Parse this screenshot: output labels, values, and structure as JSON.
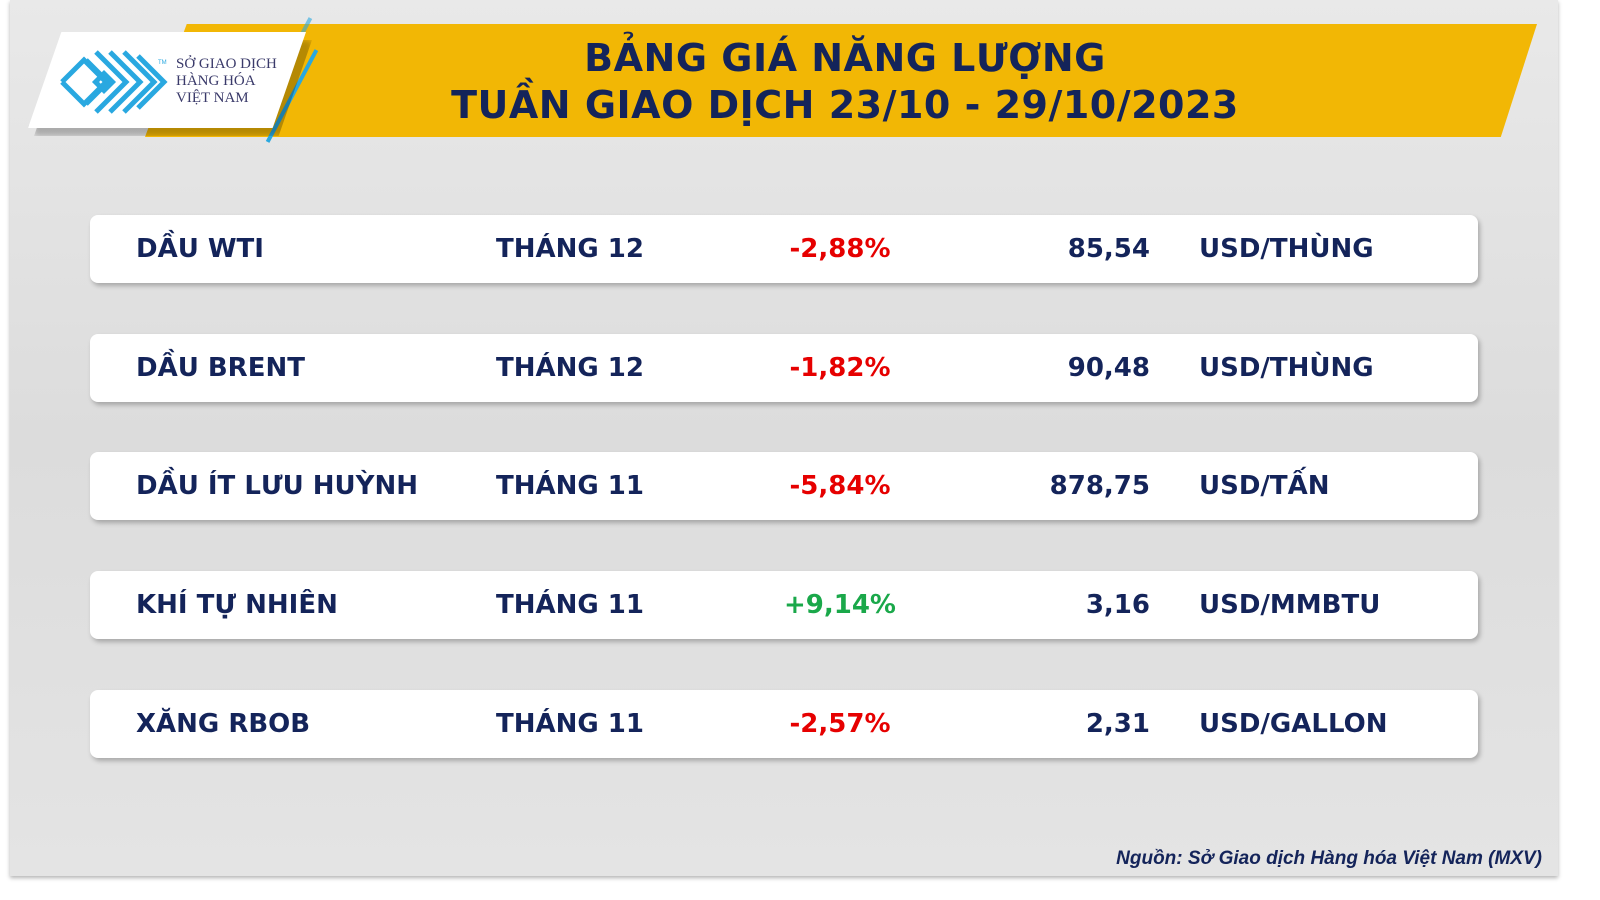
{
  "header": {
    "title_line1": "BẢNG GIÁ NĂNG LƯỢNG",
    "title_line2": "TUẦN GIAO DỊCH 23/10 - 29/10/2023"
  },
  "logo": {
    "line1": "SỞ GIAO DỊCH",
    "line2": "HÀNG HÓA",
    "line3": "VIỆT NAM",
    "tm": "TM"
  },
  "colors": {
    "banner": "#f2b705",
    "text": "#14245a",
    "negative": "#e60000",
    "positive": "#1aa84a",
    "logo_blue": "#29a8e0"
  },
  "rows": [
    {
      "name": "DẦU WTI",
      "month": "THÁNG 12",
      "change": "-2,88%",
      "direction": "down",
      "price": "85,54",
      "unit": "USD/THÙNG"
    },
    {
      "name": "DẦU BRENT",
      "month": "THÁNG 12",
      "change": "-1,82%",
      "direction": "down",
      "price": "90,48",
      "unit": "USD/THÙNG"
    },
    {
      "name": "DẦU ÍT LƯU HUỲNH",
      "month": "THÁNG 11",
      "change": "-5,84%",
      "direction": "down",
      "price": "878,75",
      "unit": "USD/TẤN"
    },
    {
      "name": "KHÍ TỰ NHIÊN",
      "month": "THÁNG 11",
      "change": "+9,14%",
      "direction": "up",
      "price": "3,16",
      "unit": "USD/MMBTU"
    },
    {
      "name": "XĂNG RBOB",
      "month": "THÁNG 11",
      "change": "-2,57%",
      "direction": "down",
      "price": "2,31",
      "unit": "USD/GALLON"
    }
  ],
  "footer": {
    "source": "Nguồn: Sở Giao dịch Hàng hóa Việt Nam (MXV)"
  }
}
